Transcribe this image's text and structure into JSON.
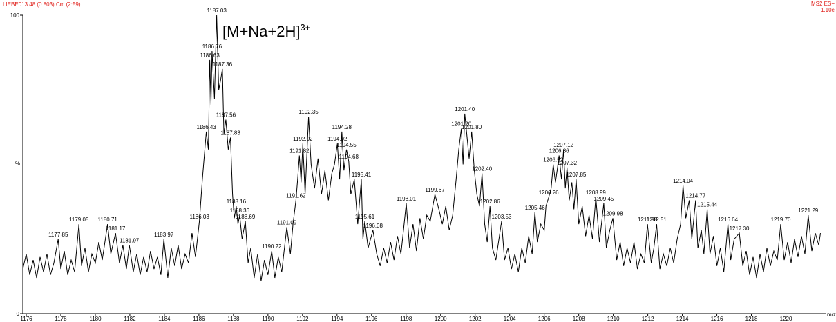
{
  "chart_data": {
    "type": "line",
    "title": "LIEBE013 48 (0.803) Cm (2:59)",
    "info": [
      "MS2 ES+",
      "1.10e"
    ],
    "annotation": {
      "text": "[M+Na+2H]",
      "sup": "3+"
    },
    "x_label": "m/z",
    "y_label": "%",
    "xlim": [
      1175.8,
      1222.3
    ],
    "ylim": [
      0,
      100
    ],
    "xticks": [
      1176,
      1178,
      1180,
      1182,
      1184,
      1186,
      1188,
      1190,
      1192,
      1194,
      1196,
      1198,
      1200,
      1202,
      1204,
      1206,
      1208,
      1210,
      1212,
      1214,
      1216,
      1218,
      1220
    ],
    "yticks": [
      0,
      100
    ],
    "color": "#000000",
    "x": [
      1175.8,
      1176.0,
      1176.2,
      1176.4,
      1176.6,
      1176.8,
      1177.0,
      1177.2,
      1177.4,
      1177.6,
      1177.85,
      1178.0,
      1178.2,
      1178.4,
      1178.6,
      1178.8,
      1179.05,
      1179.2,
      1179.4,
      1179.6,
      1179.8,
      1180.0,
      1180.2,
      1180.4,
      1180.71,
      1180.9,
      1181.17,
      1181.4,
      1181.6,
      1181.8,
      1181.97,
      1182.2,
      1182.4,
      1182.6,
      1182.8,
      1183.0,
      1183.2,
      1183.4,
      1183.6,
      1183.8,
      1183.97,
      1184.2,
      1184.4,
      1184.6,
      1184.8,
      1185.0,
      1185.2,
      1185.4,
      1185.6,
      1185.8,
      1186.03,
      1186.2,
      1186.43,
      1186.55,
      1186.63,
      1186.7,
      1186.76,
      1186.9,
      1187.03,
      1187.15,
      1187.25,
      1187.36,
      1187.45,
      1187.56,
      1187.7,
      1187.83,
      1187.95,
      1188.05,
      1188.16,
      1188.26,
      1188.36,
      1188.5,
      1188.69,
      1188.85,
      1189.0,
      1189.2,
      1189.4,
      1189.6,
      1189.8,
      1190.0,
      1190.22,
      1190.4,
      1190.6,
      1190.8,
      1191.09,
      1191.3,
      1191.45,
      1191.62,
      1191.72,
      1191.82,
      1191.92,
      1192.02,
      1192.15,
      1192.35,
      1192.5,
      1192.7,
      1192.9,
      1193.1,
      1193.3,
      1193.5,
      1193.7,
      1193.85,
      1194.02,
      1194.15,
      1194.28,
      1194.4,
      1194.55,
      1194.68,
      1194.8,
      1195.0,
      1195.2,
      1195.41,
      1195.5,
      1195.61,
      1195.8,
      1196.08,
      1196.3,
      1196.5,
      1196.7,
      1196.9,
      1197.1,
      1197.3,
      1197.5,
      1197.7,
      1197.85,
      1198.01,
      1198.2,
      1198.4,
      1198.6,
      1198.8,
      1199.0,
      1199.2,
      1199.4,
      1199.67,
      1199.9,
      1200.1,
      1200.3,
      1200.5,
      1200.7,
      1200.9,
      1201.05,
      1201.2,
      1201.3,
      1201.4,
      1201.55,
      1201.65,
      1201.8,
      1201.95,
      1202.1,
      1202.25,
      1202.4,
      1202.55,
      1202.7,
      1202.86,
      1203.0,
      1203.2,
      1203.35,
      1203.53,
      1203.7,
      1203.9,
      1204.1,
      1204.3,
      1204.5,
      1204.7,
      1204.9,
      1205.1,
      1205.3,
      1205.46,
      1205.6,
      1205.8,
      1206.0,
      1206.1,
      1206.26,
      1206.4,
      1206.52,
      1206.65,
      1206.75,
      1206.86,
      1207.0,
      1207.12,
      1207.22,
      1207.32,
      1207.45,
      1207.6,
      1207.72,
      1207.85,
      1208.0,
      1208.2,
      1208.4,
      1208.6,
      1208.8,
      1208.99,
      1209.2,
      1209.45,
      1209.6,
      1209.8,
      1209.98,
      1210.2,
      1210.4,
      1210.6,
      1210.8,
      1211.0,
      1211.2,
      1211.4,
      1211.6,
      1211.8,
      1211.98,
      1212.2,
      1212.35,
      1212.51,
      1212.7,
      1212.9,
      1213.1,
      1213.3,
      1213.5,
      1213.7,
      1213.9,
      1214.04,
      1214.2,
      1214.4,
      1214.55,
      1214.77,
      1214.9,
      1215.1,
      1215.25,
      1215.44,
      1215.6,
      1215.8,
      1216.0,
      1216.2,
      1216.4,
      1216.64,
      1216.8,
      1217.0,
      1217.3,
      1217.5,
      1217.7,
      1217.9,
      1218.1,
      1218.3,
      1218.5,
      1218.7,
      1218.9,
      1219.1,
      1219.3,
      1219.5,
      1219.7,
      1219.9,
      1220.1,
      1220.3,
      1220.5,
      1220.7,
      1220.9,
      1221.1,
      1221.29,
      1221.5,
      1221.7,
      1221.9,
      1222.0
    ],
    "values": [
      15,
      20,
      13,
      18,
      12,
      19,
      14,
      20,
      13,
      17,
      25,
      15,
      21,
      13,
      18,
      14,
      30,
      16,
      22,
      14,
      20,
      17,
      24,
      18,
      30,
      20,
      27,
      17,
      23,
      15,
      23,
      14,
      20,
      13,
      19,
      14,
      21,
      15,
      19,
      13,
      25,
      12,
      22,
      16,
      23,
      15,
      20,
      17,
      27,
      19,
      31,
      45,
      61,
      55,
      85,
      70,
      88,
      72,
      100,
      75,
      78,
      82,
      60,
      65,
      55,
      59,
      40,
      32,
      36,
      30,
      33,
      25,
      31,
      17,
      22,
      12,
      20,
      11,
      18,
      13,
      21,
      12,
      19,
      14,
      29,
      20,
      30,
      38,
      45,
      53,
      44,
      57,
      40,
      66,
      50,
      42,
      52,
      40,
      48,
      38,
      47,
      50,
      57,
      45,
      61,
      48,
      55,
      51,
      40,
      45,
      30,
      45,
      25,
      31,
      22,
      28,
      20,
      16,
      22,
      17,
      24,
      18,
      26,
      20,
      28,
      37,
      22,
      30,
      21,
      32,
      25,
      33,
      31,
      40,
      35,
      30,
      36,
      28,
      33,
      45,
      55,
      62,
      50,
      67,
      58,
      52,
      61,
      48,
      40,
      36,
      47,
      30,
      24,
      36,
      22,
      18,
      24,
      31,
      18,
      22,
      15,
      20,
      14,
      22,
      17,
      26,
      20,
      34,
      24,
      30,
      28,
      36,
      39,
      42,
      50,
      44,
      48,
      53,
      45,
      55,
      42,
      49,
      38,
      44,
      35,
      45,
      30,
      36,
      26,
      33,
      25,
      39,
      24,
      37,
      22,
      28,
      32,
      18,
      24,
      16,
      22,
      17,
      24,
      15,
      20,
      17,
      30,
      17,
      22,
      30,
      15,
      20,
      16,
      22,
      17,
      25,
      30,
      43,
      32,
      38,
      25,
      38,
      22,
      28,
      20,
      35,
      20,
      26,
      16,
      22,
      14,
      30,
      18,
      25,
      27,
      16,
      21,
      13,
      19,
      12,
      20,
      14,
      22,
      16,
      21,
      18,
      30,
      18,
      24,
      17,
      25,
      19,
      26,
      20,
      33,
      21,
      27,
      23,
      27
    ],
    "peaks": {
      "x": [
        1177.85,
        1179.05,
        1180.71,
        1181.17,
        1181.97,
        1183.97,
        1186.03,
        1186.43,
        1186.63,
        1186.76,
        1187.03,
        1187.36,
        1187.56,
        1187.83,
        1188.16,
        1188.36,
        1188.69,
        1190.22,
        1191.09,
        1191.62,
        1191.82,
        1192.02,
        1192.35,
        1194.02,
        1194.28,
        1194.55,
        1194.68,
        1195.41,
        1195.61,
        1196.08,
        1198.01,
        1199.67,
        1201.2,
        1201.4,
        1201.8,
        1202.4,
        1202.86,
        1203.53,
        1205.46,
        1206.26,
        1206.52,
        1206.86,
        1207.12,
        1207.32,
        1207.85,
        1208.99,
        1209.45,
        1209.98,
        1211.98,
        1212.51,
        1214.04,
        1214.77,
        1215.44,
        1216.64,
        1217.3,
        1219.7,
        1221.29
      ],
      "values": [
        25,
        30,
        30,
        27,
        23,
        25,
        31,
        61,
        85,
        88,
        100,
        82,
        65,
        59,
        36,
        33,
        31,
        21,
        29,
        38,
        53,
        57,
        66,
        57,
        61,
        55,
        51,
        45,
        31,
        28,
        37,
        40,
        62,
        67,
        61,
        47,
        36,
        31,
        34,
        39,
        50,
        53,
        55,
        49,
        45,
        39,
        37,
        32,
        30,
        30,
        43,
        38,
        35,
        30,
        27,
        30,
        33
      ],
      "labels": [
        "1177.85",
        "1179.05",
        "1180.71",
        "1181.17",
        "1181.97",
        "1183.97",
        "1186.03",
        "1186.43",
        "1186.63",
        "1186.76",
        "1187.03",
        "1187.36",
        "1187.56",
        "1187.83",
        "1188.16",
        "1188.36",
        "1188.69",
        "1190.22",
        "1191.09",
        "1191.62",
        "1191.82",
        "1192.02",
        "1192.35",
        "1194.02",
        "1194.28",
        "1194.55",
        "1194.68",
        "1195.41",
        "1195.61",
        "1196.08",
        "1198.01",
        "1199.67",
        "1201.20",
        "1201.40",
        "1201.80",
        "1202.40",
        "1202.86",
        "1203.53",
        "1205.46",
        "1206.26",
        "1206.52",
        "1206.86",
        "1207.12",
        "1207.32",
        "1207.85",
        "1208.99",
        "1209.45",
        "1209.98",
        "1211.98",
        "1212.51",
        "1214.04",
        "1214.77",
        "1215.44",
        "1216.64",
        "1217.30",
        "1219.70",
        "1221.29"
      ]
    }
  }
}
